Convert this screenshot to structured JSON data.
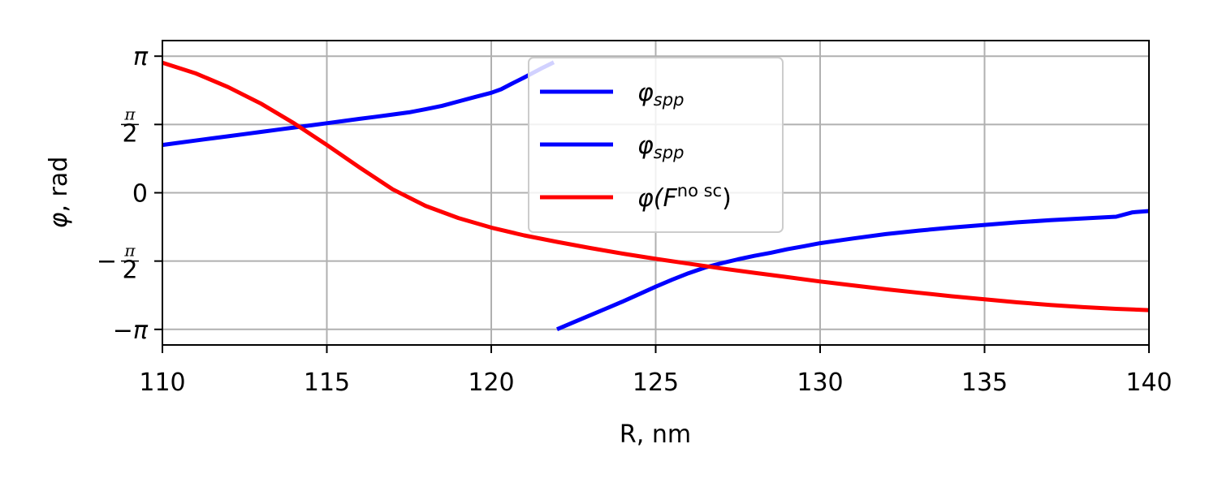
{
  "chart_data": {
    "type": "line",
    "xlabel": "R, nm",
    "ylabel_var": "φ",
    "ylabel_unit": ", rad",
    "xlim": [
      110,
      140
    ],
    "ylim": [
      -3.5,
      3.5
    ],
    "grid": true,
    "legend_placement": "upper-center",
    "x_ticks": [
      {
        "value": 110,
        "label": "110"
      },
      {
        "value": 115,
        "label": "115"
      },
      {
        "value": 120,
        "label": "120"
      },
      {
        "value": 125,
        "label": "125"
      },
      {
        "value": 130,
        "label": "130"
      },
      {
        "value": 135,
        "label": "135"
      },
      {
        "value": 140,
        "label": "140"
      }
    ],
    "y_ticks": [
      {
        "value": 3.14159,
        "kind": "plain",
        "text": "π"
      },
      {
        "value": 1.5708,
        "kind": "frac",
        "sign": "",
        "num": "π",
        "den": "2"
      },
      {
        "value": 0,
        "kind": "plain",
        "text": "0"
      },
      {
        "value": -1.5708,
        "kind": "frac",
        "sign": "−",
        "num": "π",
        "den": "2"
      },
      {
        "value": -3.14159,
        "kind": "plain",
        "text": "−π"
      }
    ],
    "series": [
      {
        "name": "φspp",
        "legend_main": "φ",
        "legend_sub": "spp",
        "color": "#0000ff",
        "x": [
          110.0,
          110.5,
          111.0,
          111.5,
          112.0,
          112.5,
          113.0,
          113.5,
          114.0,
          114.5,
          115.0,
          115.5,
          116.0,
          116.5,
          117.0,
          117.5,
          118.0,
          118.5,
          119.0,
          119.5,
          120.0,
          120.3,
          120.6,
          121.0,
          121.5,
          121.9
        ],
        "y": [
          1.1,
          1.15,
          1.2,
          1.25,
          1.3,
          1.35,
          1.4,
          1.45,
          1.5,
          1.55,
          1.6,
          1.65,
          1.7,
          1.75,
          1.8,
          1.85,
          1.92,
          2.0,
          2.1,
          2.2,
          2.3,
          2.38,
          2.5,
          2.65,
          2.85,
          3.0
        ]
      },
      {
        "name": "φspp",
        "legend_main": "φ",
        "legend_sub": "spp",
        "color": "#0000ff",
        "x": [
          122.0,
          122.5,
          123.0,
          123.5,
          124.0,
          124.5,
          125.0,
          125.5,
          126.0,
          126.5,
          127.0,
          127.5,
          128.0,
          128.5,
          129.0,
          129.5,
          130.0,
          131.0,
          132.0,
          133.0,
          134.0,
          135.0,
          136.0,
          137.0,
          138.0,
          139.0,
          139.5,
          140.0
        ],
        "y": [
          -3.14,
          -2.98,
          -2.82,
          -2.66,
          -2.5,
          -2.33,
          -2.16,
          -2.0,
          -1.85,
          -1.72,
          -1.62,
          -1.53,
          -1.45,
          -1.38,
          -1.3,
          -1.23,
          -1.16,
          -1.05,
          -0.95,
          -0.87,
          -0.8,
          -0.74,
          -0.68,
          -0.63,
          -0.59,
          -0.55,
          -0.45,
          -0.42
        ]
      },
      {
        "name": "φ(F no sc)",
        "legend_main": "φ(",
        "legend_f": "F",
        "legend_sup": "no sc",
        "legend_close": ")",
        "color": "#ff0000",
        "x": [
          110,
          111,
          112,
          113,
          114,
          115,
          116,
          117,
          118,
          119,
          120,
          121,
          122,
          123,
          124,
          125,
          126,
          127,
          128,
          129,
          130,
          131,
          132,
          133,
          134,
          135,
          136,
          137,
          138,
          139,
          140
        ],
        "y": [
          2.99,
          2.75,
          2.43,
          2.05,
          1.6,
          1.1,
          0.58,
          0.08,
          -0.3,
          -0.58,
          -0.8,
          -0.98,
          -1.13,
          -1.27,
          -1.4,
          -1.52,
          -1.63,
          -1.74,
          -1.84,
          -1.94,
          -2.04,
          -2.13,
          -2.22,
          -2.3,
          -2.38,
          -2.45,
          -2.52,
          -2.58,
          -2.63,
          -2.67,
          -2.7
        ]
      }
    ]
  }
}
